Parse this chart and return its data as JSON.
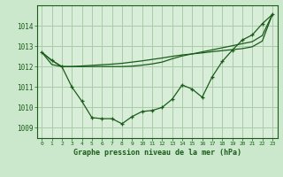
{
  "background_color": "#cce8cc",
  "plot_bg_color": "#d8eed8",
  "grid_color": "#aacaaa",
  "line_color": "#1a5c1a",
  "text_color": "#1a5c1a",
  "xlabel": "Graphe pression niveau de la mer (hPa)",
  "xlim": [
    -0.5,
    23.5
  ],
  "ylim": [
    1008.5,
    1015.0
  ],
  "yticks": [
    1009,
    1010,
    1011,
    1012,
    1013,
    1014
  ],
  "main_y": [
    1012.7,
    1012.3,
    1012.0,
    1011.0,
    1010.3,
    1009.5,
    1009.45,
    1009.45,
    1009.2,
    1009.55,
    1009.8,
    1009.85,
    1010.0,
    1010.4,
    1011.1,
    1010.9,
    1010.5,
    1011.5,
    1012.25,
    1012.8,
    1013.3,
    1013.55,
    1014.1,
    1014.55
  ],
  "line2_y": [
    1012.7,
    1012.3,
    1012.0,
    1012.0,
    1012.03,
    1012.06,
    1012.09,
    1012.12,
    1012.16,
    1012.22,
    1012.28,
    1012.35,
    1012.42,
    1012.5,
    1012.57,
    1012.62,
    1012.67,
    1012.73,
    1012.78,
    1012.83,
    1012.88,
    1012.97,
    1013.25,
    1014.55
  ],
  "line3_y": [
    1012.7,
    1012.1,
    1012.0,
    1012.0,
    1012.0,
    1012.0,
    1012.0,
    1012.0,
    1012.0,
    1012.02,
    1012.07,
    1012.13,
    1012.22,
    1012.38,
    1012.52,
    1012.62,
    1012.72,
    1012.82,
    1012.92,
    1013.02,
    1013.12,
    1013.22,
    1013.52,
    1014.55
  ],
  "xtick_fontsize": 4.5,
  "ytick_fontsize": 5.5,
  "xlabel_fontsize": 6.0,
  "linewidth": 0.9,
  "marker_size": 3.5
}
